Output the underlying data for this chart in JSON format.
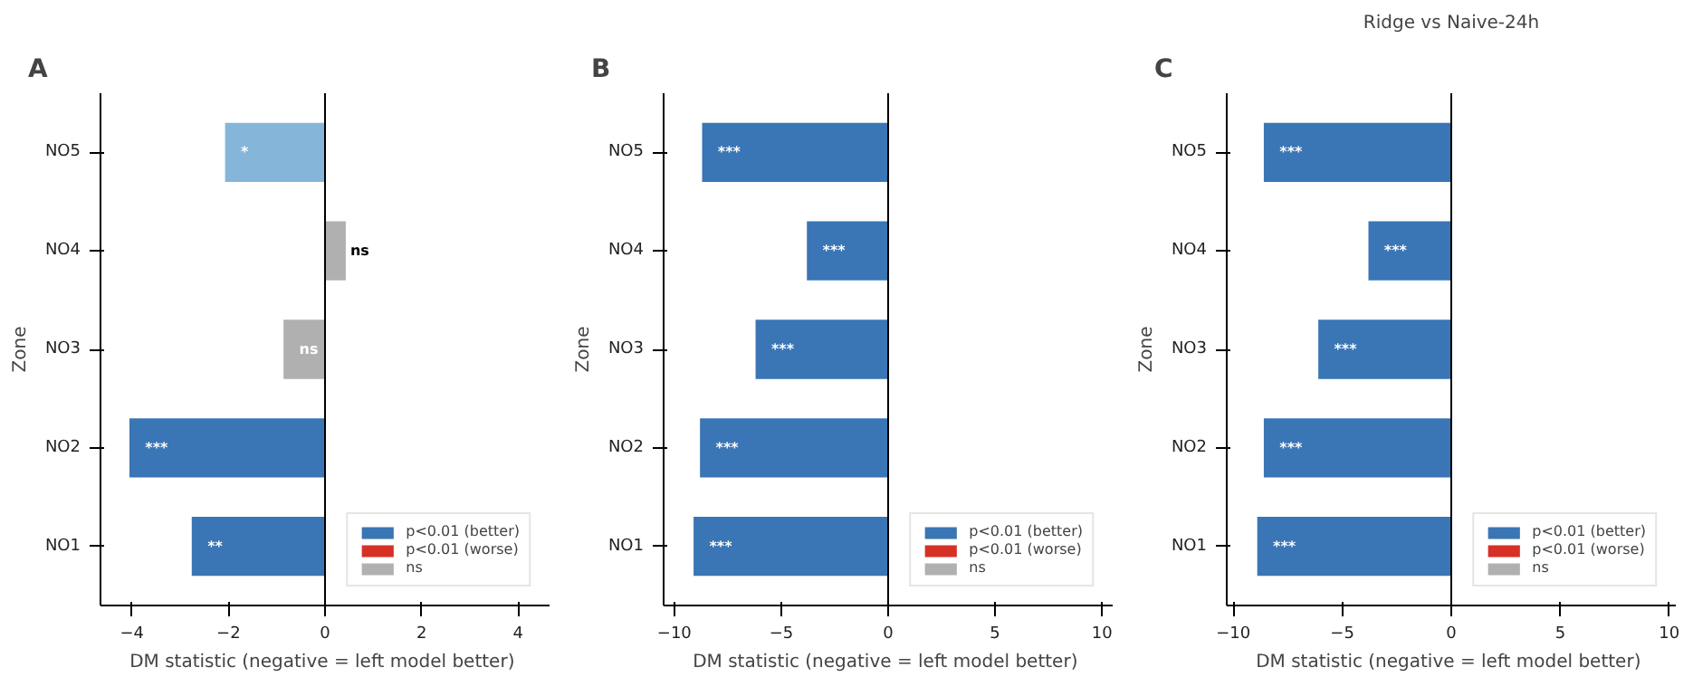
{
  "chart_data": [
    {
      "type": "bar",
      "orientation": "horizontal",
      "annotations": [
        "A"
      ],
      "xlabel": "DM statistic  (negative = left model better)",
      "ylabel": "Zone",
      "categories": [
        "NO5",
        "NO4",
        "NO3",
        "NO2",
        "NO1"
      ],
      "xlim": [
        -4.65,
        4.65
      ],
      "xticks": [
        {
          "value": -4,
          "label": "−4"
        },
        {
          "value": -2,
          "label": "−2"
        },
        0,
        2,
        4
      ],
      "grid": false,
      "legend": "bottom right",
      "ref_lines": [
        {
          "axis": "x",
          "value": 0,
          "color": "#000000"
        }
      ],
      "series": [
        {
          "name": "p<0.01 (better)",
          "color": "#3a75b5",
          "values": [
            null,
            null,
            null,
            -4.05,
            -2.76
          ],
          "value_labels": [
            null,
            null,
            null,
            "***",
            "**"
          ]
        },
        {
          "name": "p<0.01 (worse)",
          "color": "#d73027",
          "values": [
            null,
            null,
            null,
            null,
            null
          ]
        },
        {
          "name": "ns",
          "color": "#b0b0b0",
          "values": [
            null,
            0.43,
            -0.86,
            null,
            null
          ],
          "value_labels": [
            null,
            "ns",
            "ns",
            null,
            null
          ]
        },
        {
          "color": "#85b5d8",
          "values": [
            -2.07,
            null,
            null,
            null,
            null
          ],
          "value_labels": [
            "*",
            null,
            null,
            null,
            null
          ]
        }
      ]
    },
    {
      "type": "bar",
      "orientation": "horizontal",
      "annotations": [
        "B"
      ],
      "xlabel": "DM statistic  (negative = left model better)",
      "ylabel": "Zone",
      "categories": [
        "NO5",
        "NO4",
        "NO3",
        "NO2",
        "NO1"
      ],
      "xlim": [
        -10.5,
        10.5
      ],
      "xticks": [
        {
          "value": -10,
          "label": "−10"
        },
        {
          "value": -5,
          "label": "−5"
        },
        0,
        5,
        10
      ],
      "grid": false,
      "legend": "bottom right",
      "ref_lines": [
        {
          "axis": "x",
          "value": 0,
          "color": "#000000"
        }
      ],
      "series": [
        {
          "name": "p<0.01 (better)",
          "color": "#3a75b5",
          "values": [
            -8.7,
            -3.8,
            -6.2,
            -8.8,
            -9.1
          ],
          "value_labels": [
            "***",
            "***",
            "***",
            "***",
            "***"
          ]
        },
        {
          "name": "p<0.01 (worse)",
          "color": "#d73027",
          "values": [
            null,
            null,
            null,
            null,
            null
          ]
        },
        {
          "name": "ns",
          "color": "#b0b0b0",
          "values": [
            null,
            null,
            null,
            null,
            null
          ]
        }
      ]
    },
    {
      "type": "bar",
      "orientation": "horizontal",
      "title": "Ridge vs Naive-24h",
      "annotations": [
        "C"
      ],
      "xlabel": "DM statistic  (negative = left model better)",
      "ylabel": "Zone",
      "categories": [
        "NO5",
        "NO4",
        "NO3",
        "NO2",
        "NO1"
      ],
      "xlim": [
        -10.3,
        10.3
      ],
      "xticks": [
        {
          "value": -10,
          "label": "−10"
        },
        {
          "value": -5,
          "label": "−5"
        },
        0,
        5,
        10
      ],
      "grid": false,
      "legend": "bottom right",
      "ref_lines": [
        {
          "axis": "x",
          "value": 0,
          "color": "#000000"
        }
      ],
      "series": [
        {
          "name": "p<0.01 (better)",
          "color": "#3a75b5",
          "values": [
            -8.6,
            -3.8,
            -6.1,
            -8.6,
            -8.9
          ],
          "value_labels": [
            "***",
            "***",
            "***",
            "***",
            "***"
          ]
        },
        {
          "name": "p<0.01 (worse)",
          "color": "#d73027",
          "values": [
            null,
            null,
            null,
            null,
            null
          ]
        },
        {
          "name": "ns",
          "color": "#b0b0b0",
          "values": [
            null,
            null,
            null,
            null,
            null
          ]
        }
      ]
    }
  ]
}
